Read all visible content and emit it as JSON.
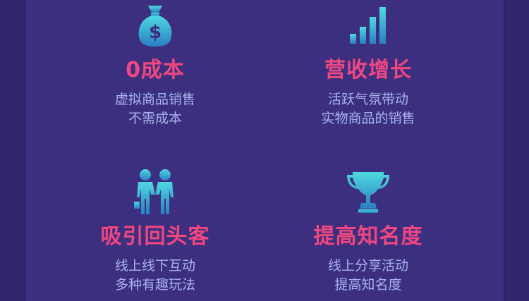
{
  "features": [
    {
      "icon": "money-bag-icon",
      "title": "0成本",
      "lines": [
        "虚拟商品销售",
        "不需成本"
      ]
    },
    {
      "icon": "bar-chart-icon",
      "title": "营收增长",
      "lines": [
        "活跃气氛带动",
        "实物商品的销售"
      ]
    },
    {
      "icon": "people-handshake-icon",
      "title": "吸引回头客",
      "lines": [
        "线上线下互动",
        "多种有趣玩法"
      ]
    },
    {
      "icon": "trophy-icon",
      "title": "提高知名度",
      "lines": [
        "线上分享活动",
        "提高知名度"
      ]
    }
  ],
  "colors": {
    "background": "#3b2d7c",
    "title": "#f0477f",
    "description": "#a8b3ee",
    "icon_gradient_top": "#4fd8e0",
    "icon_gradient_bottom": "#2a7fc4"
  }
}
